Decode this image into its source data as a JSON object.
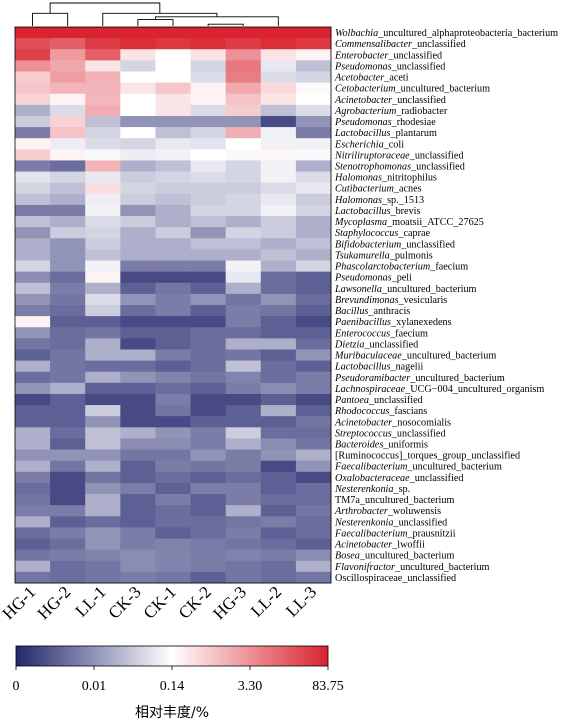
{
  "chart_data": {
    "type": "heatmap",
    "columns": [
      "HG-1",
      "HG-2",
      "LL-1",
      "CK-3",
      "CK-1",
      "CK-2",
      "HG-3",
      "LL-2",
      "LL-3"
    ],
    "rows": [
      {
        "genus": "Wolbachia",
        "suffix": "_uncultured_alphaproteobacteria_bacterium",
        "italic": true
      },
      {
        "genus": "Commensalibacter",
        "suffix": "_unclassified",
        "italic": true
      },
      {
        "genus": "Enterobacter",
        "suffix": "_unclassified",
        "italic": true
      },
      {
        "genus": "Pseudomonas",
        "suffix": "_unclassified",
        "italic": true
      },
      {
        "genus": "Acetobacter",
        "suffix": "_aceti",
        "italic": true
      },
      {
        "genus": "Cetobacterium",
        "suffix": "_uncultured_bacterium",
        "italic": true
      },
      {
        "genus": "Acinetobacter",
        "suffix": "_unclassified",
        "italic": true
      },
      {
        "genus": "Agrobacterium",
        "suffix": "_radiobacter",
        "italic": true
      },
      {
        "genus": "Pseudomonas",
        "suffix": "_rhodesiae",
        "italic": true
      },
      {
        "genus": "Lactobacillus",
        "suffix": "_plantarum",
        "italic": true
      },
      {
        "genus": "Escherichia",
        "suffix": "_coli",
        "italic": true
      },
      {
        "genus": "Nitriliruptoraceae",
        "suffix": "_unclassified",
        "italic": true
      },
      {
        "genus": "Stenotrophomonas",
        "suffix": "_unclassified",
        "italic": true
      },
      {
        "genus": "Halomonas",
        "suffix": "_nitritophilus",
        "italic": true
      },
      {
        "genus": "Cutibacterium",
        "suffix": "_acnes",
        "italic": true
      },
      {
        "genus": "Halomonas",
        "suffix": "_sp._1513",
        "italic": true
      },
      {
        "genus": "Lactobacillus",
        "suffix": "_brevis",
        "italic": true
      },
      {
        "genus": "Mycoplasma",
        "suffix": "_moatsii_ATCC_27625",
        "italic": true
      },
      {
        "genus": "Staphylococcus",
        "suffix": "_caprae",
        "italic": true
      },
      {
        "genus": "Bifidobacterium",
        "suffix": "_unclassified",
        "italic": true
      },
      {
        "genus": "Tsukamurella",
        "suffix": "_pulmonis",
        "italic": true
      },
      {
        "genus": "Phascolarctobacterium",
        "suffix": "_faecium",
        "italic": true
      },
      {
        "genus": "Pseudomonas",
        "suffix": "_peli",
        "italic": true
      },
      {
        "genus": "Lawsonella",
        "suffix": "_uncultured_bacterium",
        "italic": true
      },
      {
        "genus": "Brevundimonas",
        "suffix": "_vesicularis",
        "italic": true
      },
      {
        "genus": "Bacillus",
        "suffix": "_anthracis",
        "italic": true
      },
      {
        "genus": "Paenibacillus",
        "suffix": "_xylanexedens",
        "italic": true
      },
      {
        "genus": "Enterococcus",
        "suffix": "_faecium",
        "italic": true
      },
      {
        "genus": "Dietzia",
        "suffix": "_unclassified",
        "italic": true
      },
      {
        "genus": "Muribaculaceae",
        "suffix": "_uncultured_bacterium",
        "italic": true
      },
      {
        "genus": "Lactobacillus",
        "suffix": "_nagelii",
        "italic": true
      },
      {
        "genus": "Pseudoramibacter",
        "suffix": "_uncultured_bacterium",
        "italic": true
      },
      {
        "genus": "Lachnospiraceae",
        "suffix": "_UCG−004_uncultured_organism",
        "italic": true
      },
      {
        "genus": "Pantoea",
        "suffix": "_unclassified",
        "italic": true
      },
      {
        "genus": "Rhodococcus",
        "suffix": "_fascians",
        "italic": true
      },
      {
        "genus": "Acinetobacter",
        "suffix": "_nosocomialis",
        "italic": true
      },
      {
        "genus": "Streptococcus",
        "suffix": "_unclassified",
        "italic": true
      },
      {
        "genus": "Bacteroides",
        "suffix": "_uniformis",
        "italic": true
      },
      {
        "genus": "[Ruminococcus]",
        "suffix": "_torques_group_unclassified",
        "italic": false
      },
      {
        "genus": "Faecalibacterium",
        "suffix": "_uncultured_bacterium",
        "italic": true
      },
      {
        "genus": "Oxalobacteraceae",
        "suffix": "_unclassified",
        "italic": true
      },
      {
        "genus": "Nesterenkonia",
        "suffix": "_sp.",
        "italic": true
      },
      {
        "genus": "TM7a",
        "suffix": "_uncultured_bacterium",
        "italic": false
      },
      {
        "genus": "Arthrobacter",
        "suffix": "_woluwensis",
        "italic": true
      },
      {
        "genus": "Nesterenkonia",
        "suffix": "_unclassified",
        "italic": true
      },
      {
        "genus": "Faecalibacterium",
        "suffix": "_prausnitzii",
        "italic": true
      },
      {
        "genus": "Acinetobacter",
        "suffix": "_lwoffii",
        "italic": true
      },
      {
        "genus": "Bosea",
        "suffix": "_uncultured_bacterium",
        "italic": true
      },
      {
        "genus": "Flavonifractor",
        "suffix": "_uncultured_bacterium",
        "italic": true
      },
      {
        "genus": "Oscillospiraceae_unclassified",
        "suffix": "",
        "italic": false
      }
    ],
    "values": [
      [
        83.75,
        83.75,
        83.75,
        83.75,
        83.75,
        83.75,
        83.75,
        83.75,
        83.75
      ],
      [
        23,
        14,
        40,
        60,
        45,
        60,
        40,
        60,
        45
      ],
      [
        35,
        2.5,
        14,
        0.3,
        0.14,
        0.3,
        3.3,
        0.3,
        0.2
      ],
      [
        3.3,
        1.8,
        0.3,
        0.05,
        0.14,
        0.05,
        7,
        0.08,
        0.03
      ],
      [
        0.6,
        2.3,
        1.3,
        0.14,
        0.14,
        0.06,
        6,
        0.06,
        0.05
      ],
      [
        0.7,
        1.2,
        1.2,
        0.3,
        0.7,
        0.2,
        1.6,
        0.4,
        0.16
      ],
      [
        0.5,
        0.2,
        1.1,
        0.14,
        0.3,
        0.2,
        0.8,
        0.3,
        0.14
      ],
      [
        0.02,
        0.06,
        1.5,
        0.14,
        0.3,
        0.06,
        0.6,
        0.03,
        0.06
      ],
      [
        0.04,
        0.5,
        0.03,
        0.01,
        0.01,
        0.01,
        0.01,
        0.001,
        0.01
      ],
      [
        0.005,
        0.8,
        0.05,
        0.14,
        0.03,
        0.05,
        1.4,
        0.1,
        0.005
      ],
      [
        0.2,
        0.09,
        0.06,
        0.05,
        0.08,
        0.07,
        0.14,
        0.1,
        0.1
      ],
      [
        0.6,
        0.2,
        0.12,
        0.09,
        0.1,
        0.14,
        0.12,
        0.18,
        0.12
      ],
      [
        0.005,
        0.003,
        1.2,
        0.02,
        0.03,
        0.08,
        0.05,
        0.1,
        0.02
      ],
      [
        0.07,
        0.05,
        0.08,
        0.04,
        0.05,
        0.06,
        0.05,
        0.1,
        0.06
      ],
      [
        0.05,
        0.03,
        0.35,
        0.05,
        0.04,
        0.04,
        0.04,
        0.06,
        0.08
      ],
      [
        0.03,
        0.02,
        0.09,
        0.04,
        0.03,
        0.04,
        0.05,
        0.08,
        0.04
      ],
      [
        0.005,
        0.005,
        0.1,
        0.01,
        0.02,
        0.05,
        0.05,
        0.1,
        0.05
      ],
      [
        0.03,
        0.02,
        0.06,
        0.04,
        0.02,
        0.03,
        0.02,
        0.04,
        0.02
      ],
      [
        0.01,
        0.04,
        0.05,
        0.02,
        0.04,
        0.01,
        0.05,
        0.04,
        0.02
      ],
      [
        0.02,
        0.01,
        0.04,
        0.02,
        0.02,
        0.03,
        0.03,
        0.02,
        0.03
      ],
      [
        0.02,
        0.01,
        0.03,
        0.02,
        0.02,
        0.02,
        0.02,
        0.03,
        0.02
      ],
      [
        0.05,
        0.01,
        0.1,
        0.005,
        0.005,
        0.005,
        0.1,
        0.02,
        0.05
      ],
      [
        0.008,
        0.003,
        0.2,
        0.001,
        0.001,
        0.001,
        0.08,
        0.003,
        0.002
      ],
      [
        0.03,
        0.005,
        0.02,
        0.002,
        0.004,
        0.002,
        0.02,
        0.003,
        0.002
      ],
      [
        0.01,
        0.004,
        0.06,
        0.01,
        0.005,
        0.01,
        0.004,
        0.01,
        0.003
      ],
      [
        0.005,
        0.003,
        0.04,
        0.003,
        0.005,
        0.002,
        0.005,
        0.004,
        0.002
      ],
      [
        0.2,
        0.002,
        0.002,
        0.001,
        0.001,
        0.001,
        0.005,
        0.002,
        0.001
      ],
      [
        0.01,
        0.003,
        0.004,
        0.002,
        0.002,
        0.003,
        0.003,
        0.002,
        0.002
      ],
      [
        0.004,
        0.003,
        0.02,
        0.001,
        0.002,
        0.003,
        0.02,
        0.02,
        0.003
      ],
      [
        0.002,
        0.004,
        0.02,
        0.02,
        0.005,
        0.003,
        0.004,
        0.002,
        0.01
      ],
      [
        0.02,
        0.004,
        0.003,
        0.003,
        0.002,
        0.003,
        0.03,
        0.003,
        0.002
      ],
      [
        0.003,
        0.004,
        0.02,
        0.01,
        0.006,
        0.004,
        0.006,
        0.003,
        0.005
      ],
      [
        0.01,
        0.02,
        0.002,
        0.002,
        0.003,
        0.002,
        0.005,
        0.008,
        0.005
      ],
      [
        0.001,
        0.002,
        0.001,
        0.001,
        0.005,
        0.001,
        0.001,
        0.002,
        0.001
      ],
      [
        0.002,
        0.002,
        0.04,
        0.001,
        0.004,
        0.001,
        0.002,
        0.02,
        0.002
      ],
      [
        0.002,
        0.002,
        0.01,
        0.001,
        0.001,
        0.002,
        0.002,
        0.002,
        0.004
      ],
      [
        0.02,
        0.003,
        0.03,
        0.02,
        0.01,
        0.005,
        0.04,
        0.003,
        0.003
      ],
      [
        0.02,
        0.002,
        0.03,
        0.008,
        0.008,
        0.005,
        0.02,
        0.008,
        0.004
      ],
      [
        0.01,
        0.01,
        0.01,
        0.004,
        0.004,
        0.01,
        0.005,
        0.01,
        0.02
      ],
      [
        0.02,
        0.004,
        0.02,
        0.002,
        0.005,
        0.004,
        0.005,
        0.001,
        0.01
      ],
      [
        0.005,
        0.001,
        0.004,
        0.002,
        0.003,
        0.002,
        0.003,
        0.002,
        0.001
      ],
      [
        0.003,
        0.001,
        0.01,
        0.005,
        0.002,
        0.005,
        0.005,
        0.002,
        0.003
      ],
      [
        0.004,
        0.001,
        0.02,
        0.002,
        0.005,
        0.002,
        0.005,
        0.003,
        0.003
      ],
      [
        0.005,
        0.005,
        0.02,
        0.002,
        0.003,
        0.002,
        0.02,
        0.002,
        0.004
      ],
      [
        0.02,
        0.002,
        0.003,
        0.002,
        0.003,
        0.003,
        0.004,
        0.005,
        0.003
      ],
      [
        0.003,
        0.005,
        0.01,
        0.005,
        0.002,
        0.003,
        0.005,
        0.002,
        0.003
      ],
      [
        0.002,
        0.003,
        0.01,
        0.005,
        0.006,
        0.005,
        0.004,
        0.003,
        0.002
      ],
      [
        0.004,
        0.005,
        0.006,
        0.008,
        0.006,
        0.005,
        0.006,
        0.005,
        0.008
      ],
      [
        0.02,
        0.003,
        0.004,
        0.008,
        0.006,
        0.005,
        0.004,
        0.003,
        0.02
      ],
      [
        0.004,
        0.003,
        0.004,
        0.005,
        0.004,
        0.002,
        0.004,
        0.003,
        0.004
      ]
    ],
    "colorbar": {
      "ticks": [
        "0",
        "0.01",
        "0.14",
        "3.30",
        "83.75"
      ],
      "tick_values": [
        0,
        0.01,
        0.14,
        3.3,
        83.75
      ],
      "colors": [
        "#23276e",
        "#ffffff",
        "#d9232e"
      ],
      "title": "相对丰度/%"
    },
    "dendrogram": {
      "merges": [
        [
          5,
          6
        ],
        [
          2,
          9
        ],
        [
          3,
          4
        ],
        [
          3,
          7
        ],
        [
          2,
          3
        ],
        [
          0,
          1
        ],
        [
          0,
          2
        ]
      ],
      "heights": [
        0.08,
        0.2,
        0.28,
        0.4,
        0.55,
        0.55,
        1.0
      ]
    }
  }
}
